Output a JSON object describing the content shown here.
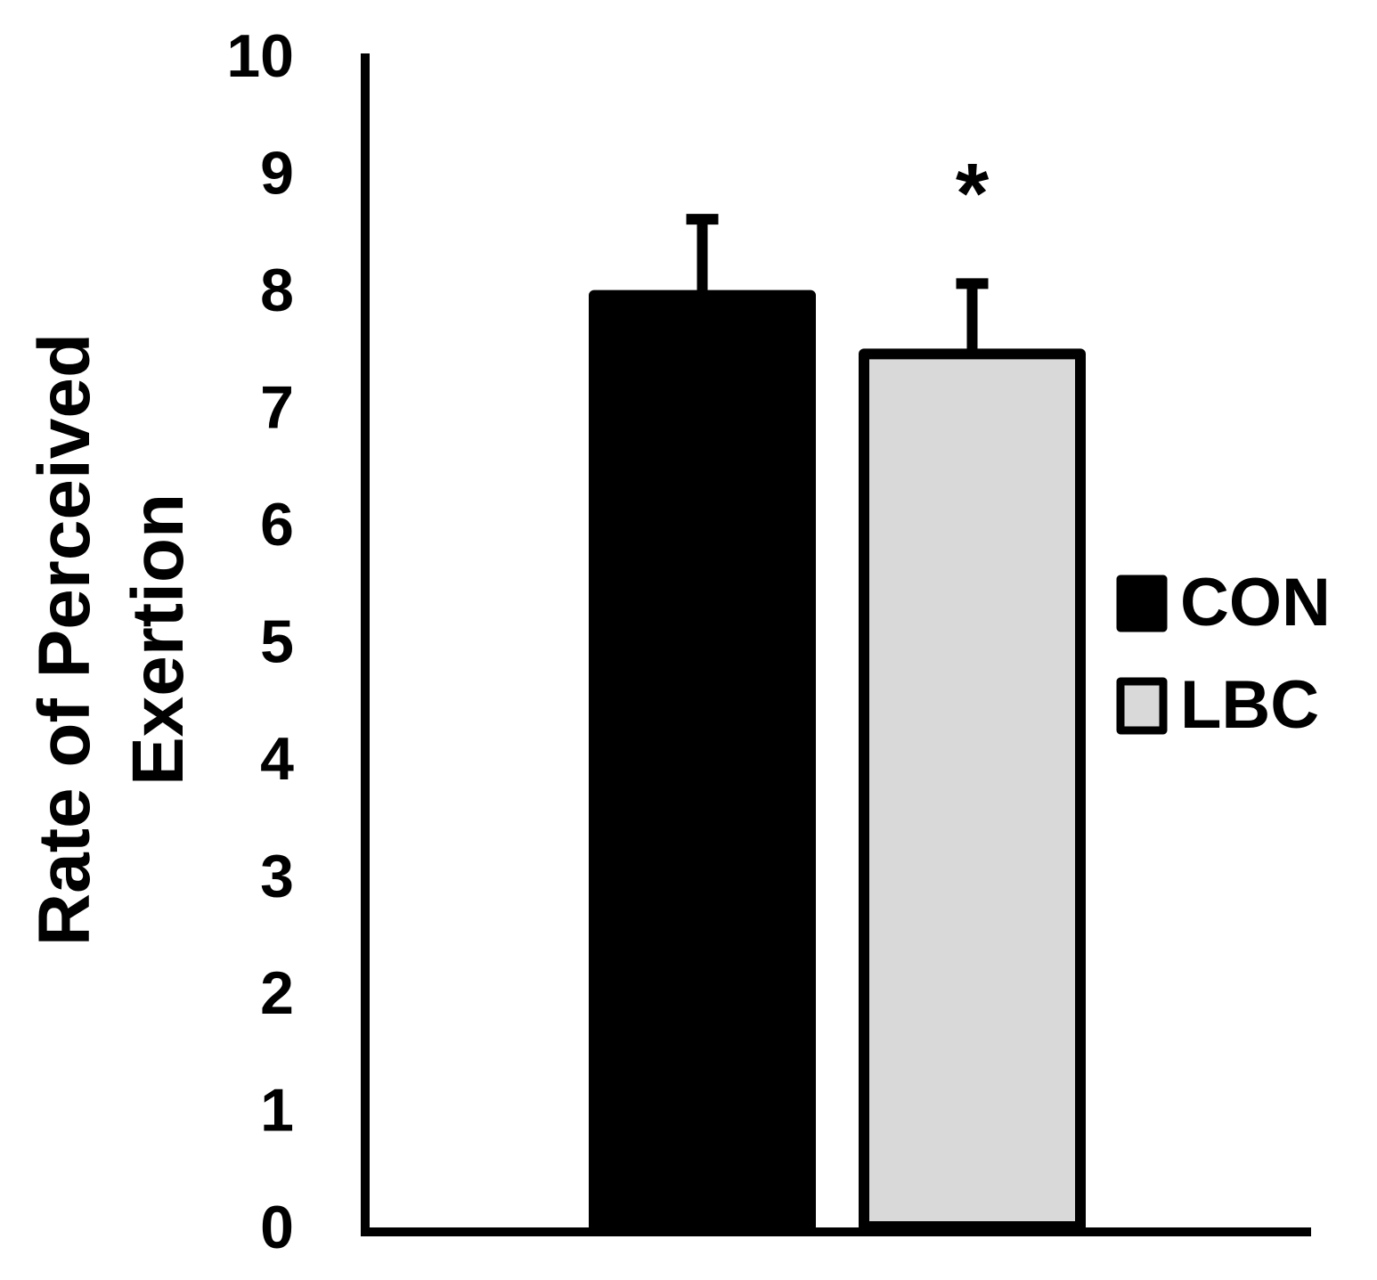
{
  "chart_data": {
    "type": "bar",
    "title": "",
    "xlabel": "",
    "ylabel": [
      "Rate of Perceived",
      "Exertion"
    ],
    "ylim": [
      0,
      10
    ],
    "y_ticks": [
      "0",
      "1",
      "2",
      "3",
      "4",
      "5",
      "6",
      "7",
      "8",
      "9",
      "10"
    ],
    "grid": false,
    "legend_position": "right",
    "series": [
      {
        "name": "CON",
        "value": 7.95,
        "error": 0.65,
        "color": "#000000",
        "annotation": ""
      },
      {
        "name": "LBC",
        "value": 7.45,
        "error": 0.6,
        "color": "#d9d9d9",
        "annotation": "*"
      }
    ]
  }
}
